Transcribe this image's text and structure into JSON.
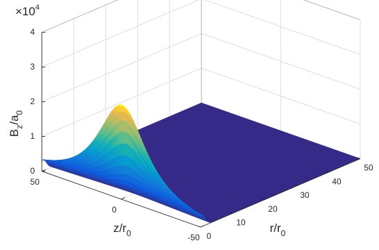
{
  "chart_data": {
    "type": "surface",
    "title": "",
    "xlabel": {
      "main": "z/r",
      "sub": "0"
    },
    "ylabel": {
      "main": "r/r",
      "sub": "0"
    },
    "zlabel": {
      "main": "B",
      "sub1": "z",
      "mid": "/a",
      "sub2": "0"
    },
    "z_multiplier": {
      "base": "×10",
      "exp": "4"
    },
    "x_ticks": [
      "50",
      "0",
      "-50"
    ],
    "y_ticks": [
      "0",
      "10",
      "20",
      "30",
      "40",
      "50"
    ],
    "z_ticks": [
      "0",
      "1",
      "2",
      "3",
      "4"
    ],
    "xlim": [
      -50,
      50
    ],
    "ylim": [
      0,
      50
    ],
    "zlim": [
      0,
      40000
    ],
    "grid": true,
    "colormap": "parula",
    "peak": {
      "z": 0,
      "r": 0,
      "value": 27000
    },
    "edge_value_at_z_50": 3200,
    "floor_value": 0
  }
}
